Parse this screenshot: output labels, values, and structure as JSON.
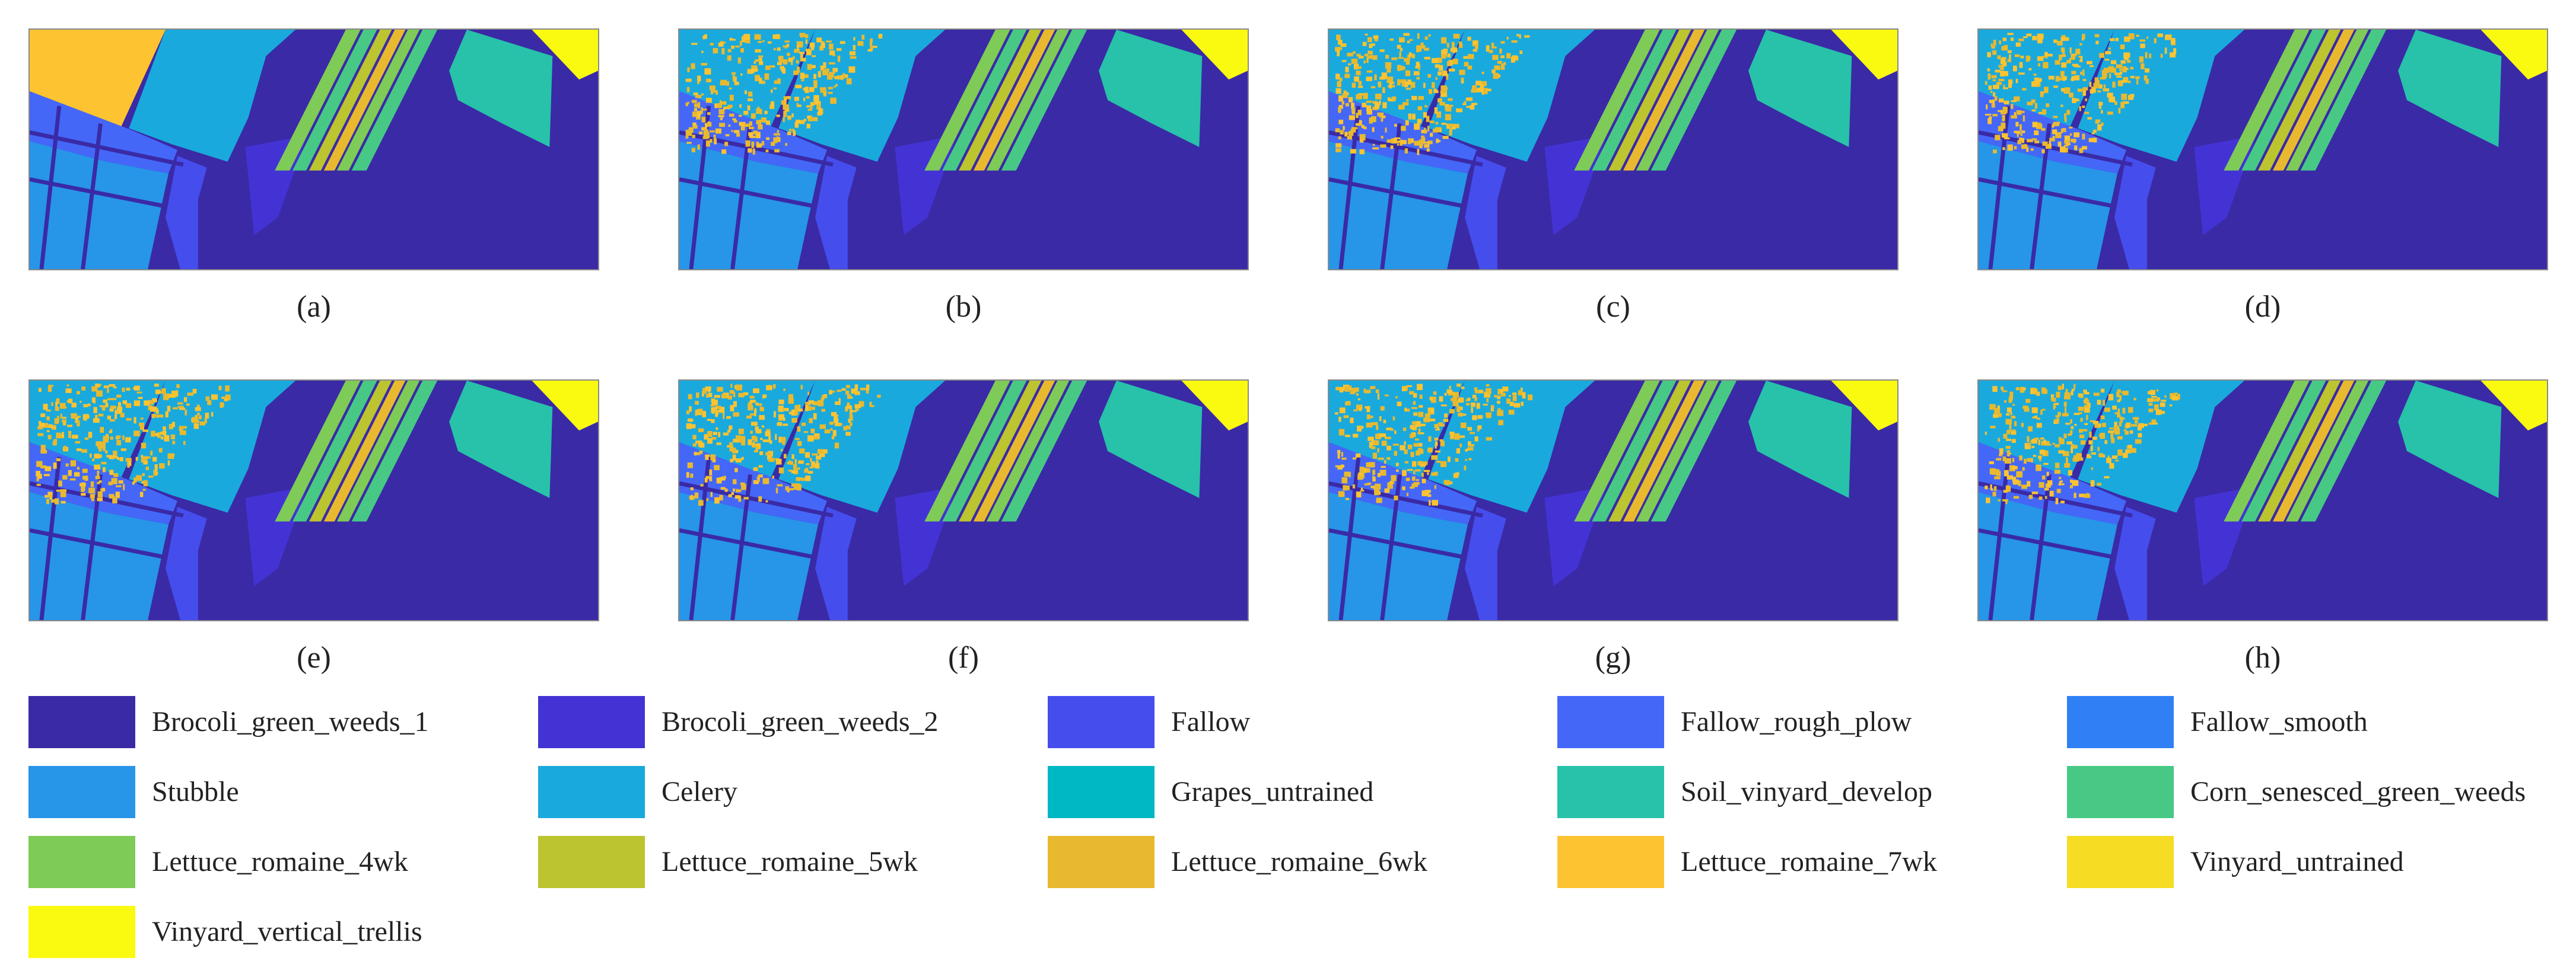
{
  "panels": [
    {
      "label": "(a)",
      "variant": "ground-truth"
    },
    {
      "label": "(b)",
      "variant": "classified"
    },
    {
      "label": "(c)",
      "variant": "classified"
    },
    {
      "label": "(d)",
      "variant": "classified"
    },
    {
      "label": "(e)",
      "variant": "classified"
    },
    {
      "label": "(f)",
      "variant": "classified"
    },
    {
      "label": "(g)",
      "variant": "classified"
    },
    {
      "label": "(h)",
      "variant": "classified"
    }
  ],
  "legend": [
    {
      "label": "Brocoli_green_weeds_1",
      "color": "#3a2aa6"
    },
    {
      "label": "Brocoli_green_weeds_2",
      "color": "#4433d4"
    },
    {
      "label": "Fallow",
      "color": "#464ded"
    },
    {
      "label": "Fallow_rough_plow",
      "color": "#4467f8"
    },
    {
      "label": "Fallow_smooth",
      "color": "#2f80f5"
    },
    {
      "label": "Stubble",
      "color": "#2795e8"
    },
    {
      "label": "Celery",
      "color": "#1aa9dc"
    },
    {
      "label": "Grapes_untrained",
      "color": "#00b8c4"
    },
    {
      "label": "Soil_vinyard_develop",
      "color": "#27c2a9"
    },
    {
      "label": "Corn_senesced_green_weeds",
      "color": "#47c985"
    },
    {
      "label": "Lettuce_romaine_4wk",
      "color": "#7ecb57"
    },
    {
      "label": "Lettuce_romaine_5wk",
      "color": "#bcc42f"
    },
    {
      "label": "Lettuce_romaine_6wk",
      "color": "#e8b92f"
    },
    {
      "label": "Lettuce_romaine_7wk",
      "color": "#fdc331"
    },
    {
      "label": "Vinyard_untrained",
      "color": "#f6dd23"
    },
    {
      "label": "Vinyard_vertical_trellis",
      "color": "#fafa11"
    }
  ]
}
